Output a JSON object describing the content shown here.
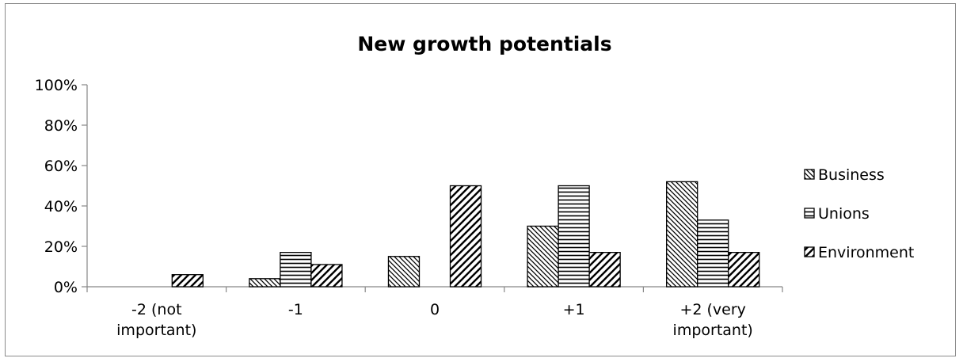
{
  "chart_data": {
    "type": "bar",
    "title": "New growth potentials",
    "categories": [
      "-2 (not important)",
      "-1",
      "0",
      "+1",
      "+2 (very important)"
    ],
    "category_lines": [
      [
        "-2 (not",
        "important)"
      ],
      [
        "-1"
      ],
      [
        "0"
      ],
      [
        "+1"
      ],
      [
        "+2 (very",
        "important)"
      ]
    ],
    "series": [
      {
        "name": "Business",
        "values": [
          0,
          4,
          15,
          30,
          52
        ],
        "pattern": "diag-back"
      },
      {
        "name": "Unions",
        "values": [
          0,
          17,
          0,
          50,
          33
        ],
        "pattern": "horizontal"
      },
      {
        "name": "Environment",
        "values": [
          6,
          11,
          50,
          17,
          17
        ],
        "pattern": "diag-wide"
      }
    ],
    "y_ticks": [
      "0%",
      "20%",
      "40%",
      "60%",
      "80%",
      "100%"
    ],
    "ylim": [
      0,
      100
    ],
    "legend_position": "right",
    "grid": false
  }
}
